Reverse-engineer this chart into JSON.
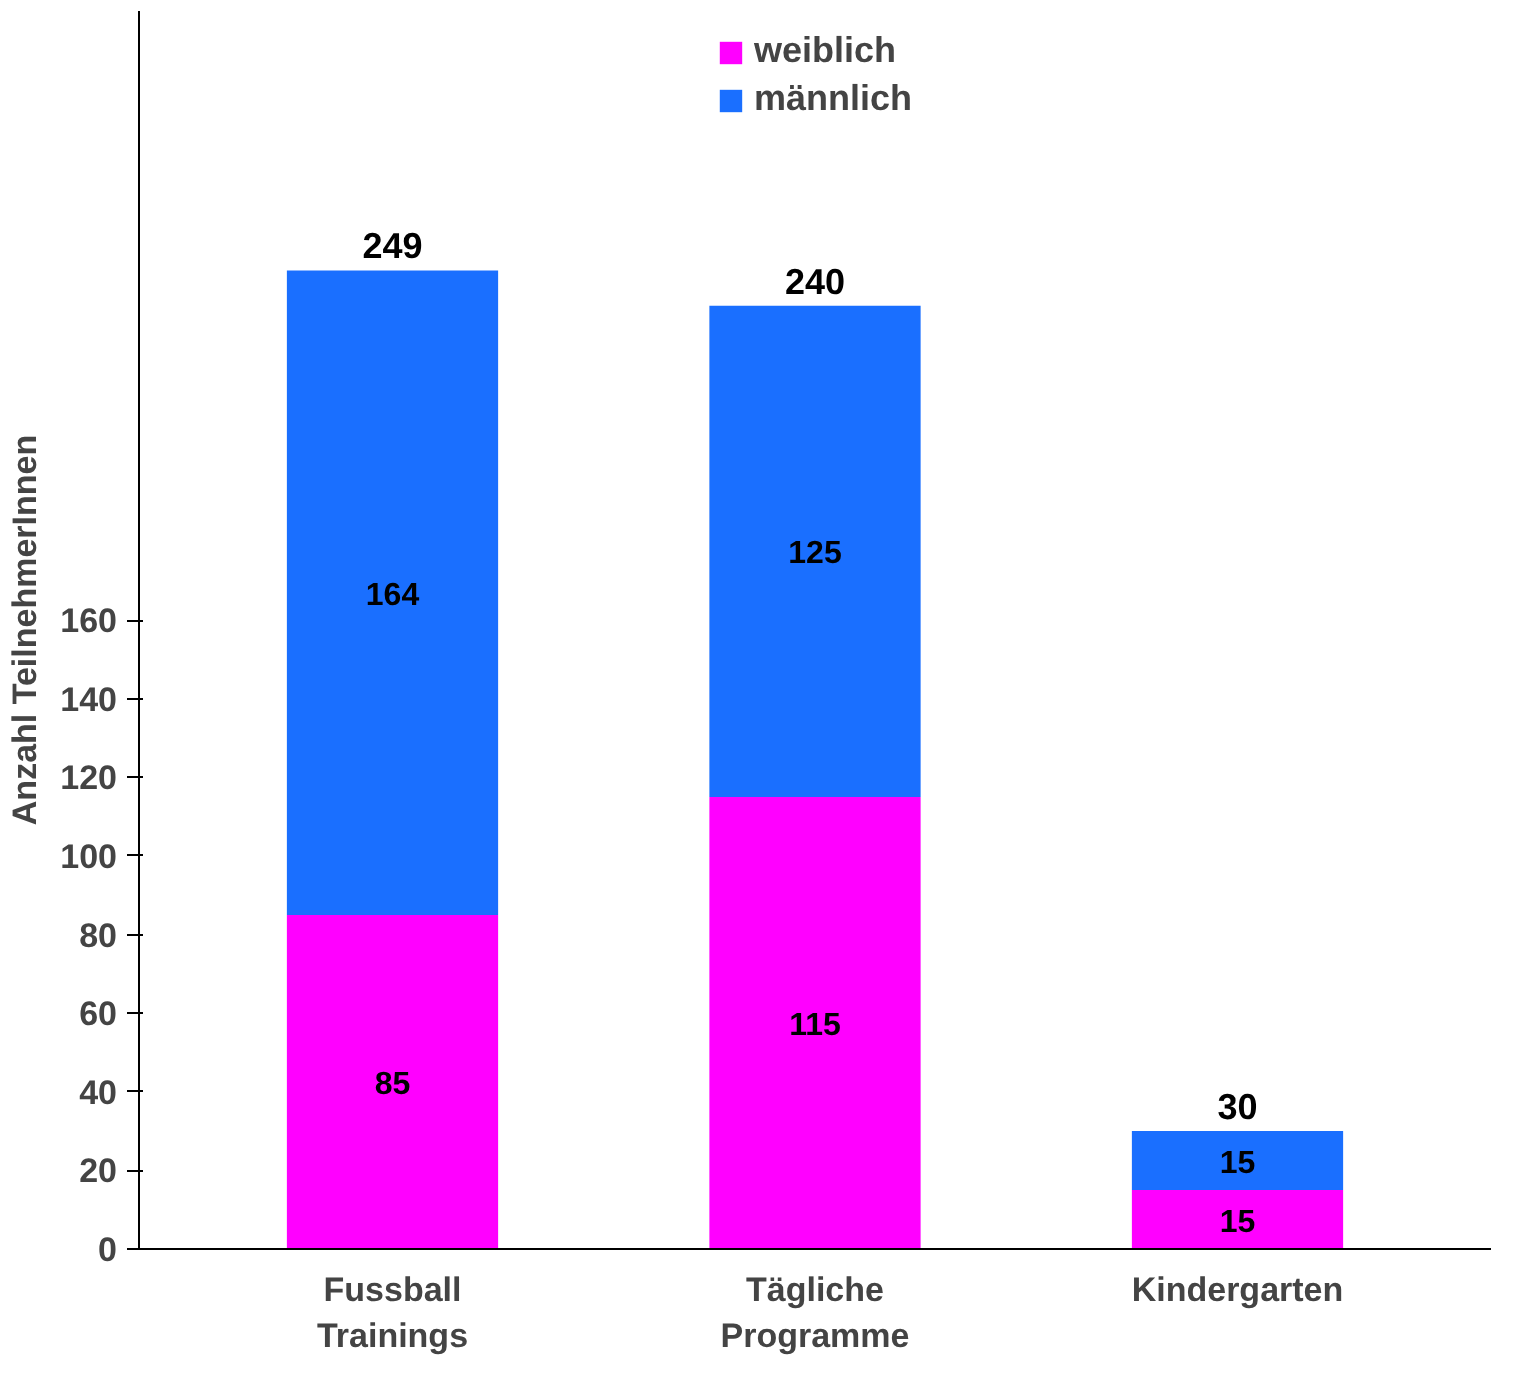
{
  "chart_data": {
    "type": "bar",
    "stacked": true,
    "ylabel": "Anzahl TeilnehmerInnen",
    "categories": [
      "Fussball\nTrainings",
      "Tägliche\nProgramme",
      "Kindergarten"
    ],
    "series": [
      {
        "name": "weiblich",
        "color": "#ff00ff",
        "values": [
          85,
          115,
          15
        ]
      },
      {
        "name": "männlich",
        "color": "#1a6fff",
        "values": [
          164,
          125,
          15
        ]
      }
    ],
    "ylim": [
      0,
      315
    ],
    "yticks": [
      0,
      20,
      40,
      60,
      80,
      100,
      120,
      140,
      160
    ],
    "data_labels": true,
    "totals": [
      "249",
      "240",
      "30"
    ],
    "grid": false,
    "legend": "top"
  }
}
